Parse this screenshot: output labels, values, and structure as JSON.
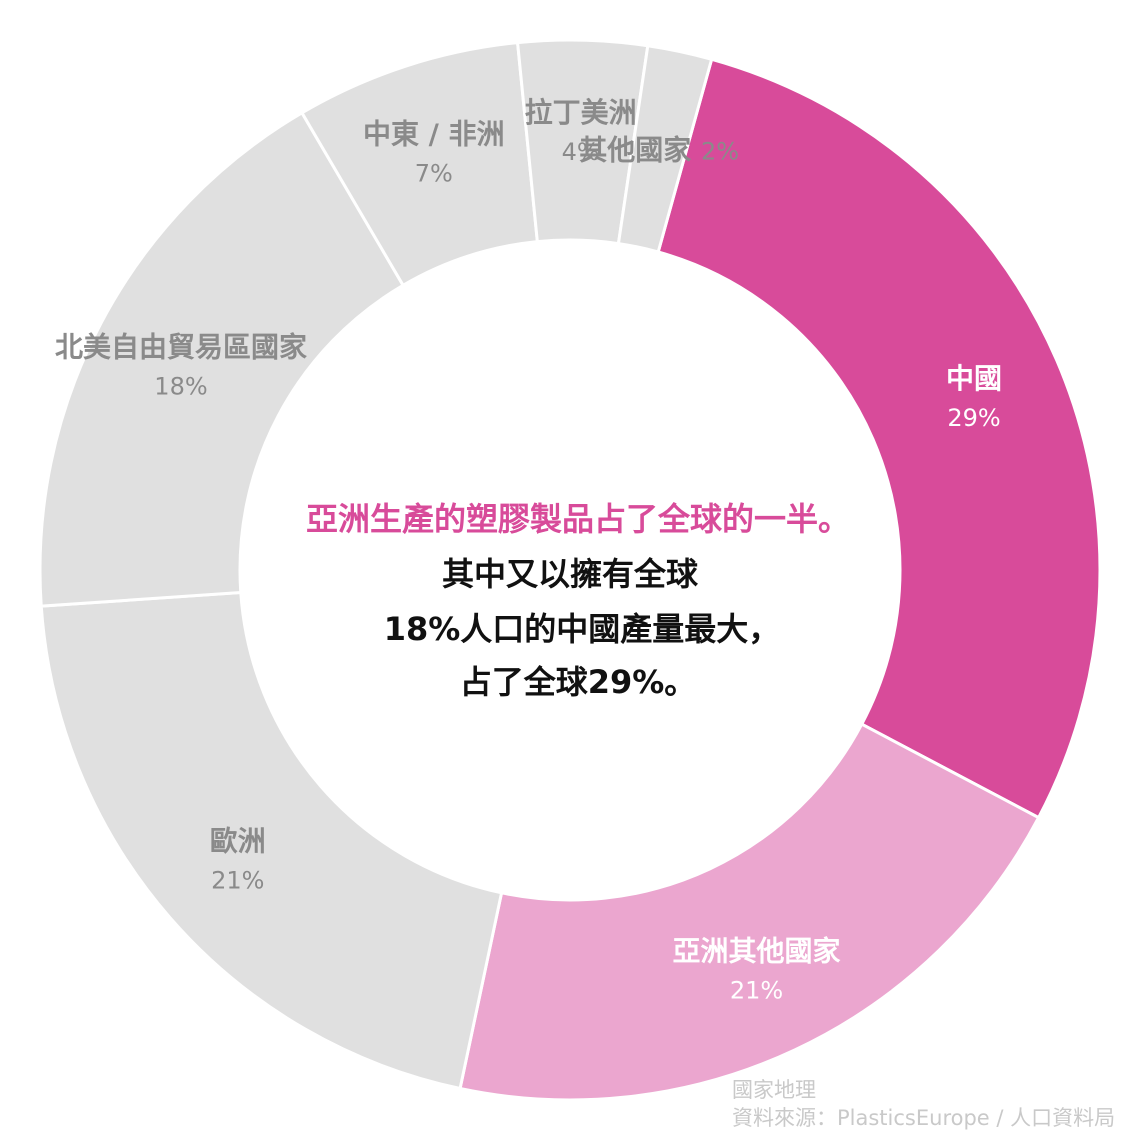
{
  "chart_data": {
    "type": "pie",
    "style": "donut",
    "categories": [
      "中國",
      "亞洲其他國家",
      "歐洲",
      "北美自由貿易區國家",
      "中東 / 非洲",
      "拉丁美洲",
      "其他國家"
    ],
    "values": [
      29,
      21,
      21,
      18,
      7,
      4,
      2
    ],
    "value_labels": [
      "29%",
      "21%",
      "21%",
      "18%",
      "7%",
      "4%",
      "2%"
    ],
    "colors": [
      "#d84b9a",
      "#eba6cf",
      "#e0e0e0",
      "#e0e0e0",
      "#e0e0e0",
      "#e0e0e0",
      "#e0e0e0"
    ],
    "label_colors": [
      "#ffffff",
      "#ffffff",
      "#8a8a8a",
      "#8a8a8a",
      "#8a8a8a",
      "#8a8a8a",
      "#8a8a8a"
    ],
    "center_text": {
      "highlight": "亞洲生產的塑膠製品占了全球的一半。",
      "highlight_color": "#d84b9a",
      "lines": [
        "其中又以擁有全球",
        "18%人口的中國產量最大，",
        "占了全球29%。"
      ]
    }
  },
  "credits": {
    "publisher": "國家地理",
    "source": "資料來源：PlasticsEurope / 人口資料局"
  }
}
